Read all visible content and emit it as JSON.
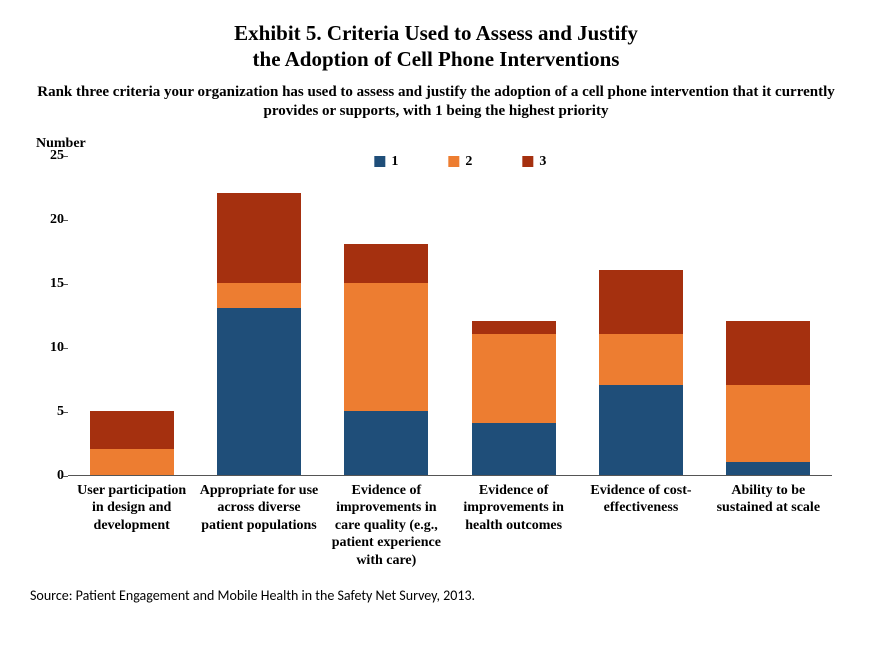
{
  "title_line1": "Exhibit 5. Criteria Used to Assess and Justify",
  "title_line2": "the Adoption of Cell Phone Interventions",
  "subtitle": "Rank three criteria your organization has used to assess and justify the adoption of a cell phone intervention that it currently provides or supports, with 1 being the highest priority",
  "ylabel": "Number",
  "source": "Source: Patient Engagement and Mobile Health in the Safety Net Survey, 2013.",
  "chart": {
    "type": "stacked-bar",
    "ymax": 25,
    "yticks": [
      0,
      5,
      10,
      15,
      20,
      25
    ],
    "series": [
      {
        "name": "1",
        "color": "#1f4e79"
      },
      {
        "name": "2",
        "color": "#ed7d31"
      },
      {
        "name": "3",
        "color": "#a5300f"
      }
    ],
    "categories": [
      {
        "label": "User participation in design and development",
        "values": [
          0,
          2,
          3
        ]
      },
      {
        "label": "Appropriate for use across diverse patient populations",
        "values": [
          13,
          2,
          7
        ]
      },
      {
        "label": "Evidence of improvements in care quality (e.g., patient experience with care)",
        "values": [
          5,
          10,
          3
        ]
      },
      {
        "label": "Evidence of improvements in health outcomes",
        "values": [
          4,
          7,
          1
        ]
      },
      {
        "label": "Evidence of cost-effectiveness",
        "values": [
          7,
          4,
          5
        ]
      },
      {
        "label": "Ability to be sustained at scale",
        "values": [
          1,
          6,
          5
        ]
      }
    ]
  }
}
